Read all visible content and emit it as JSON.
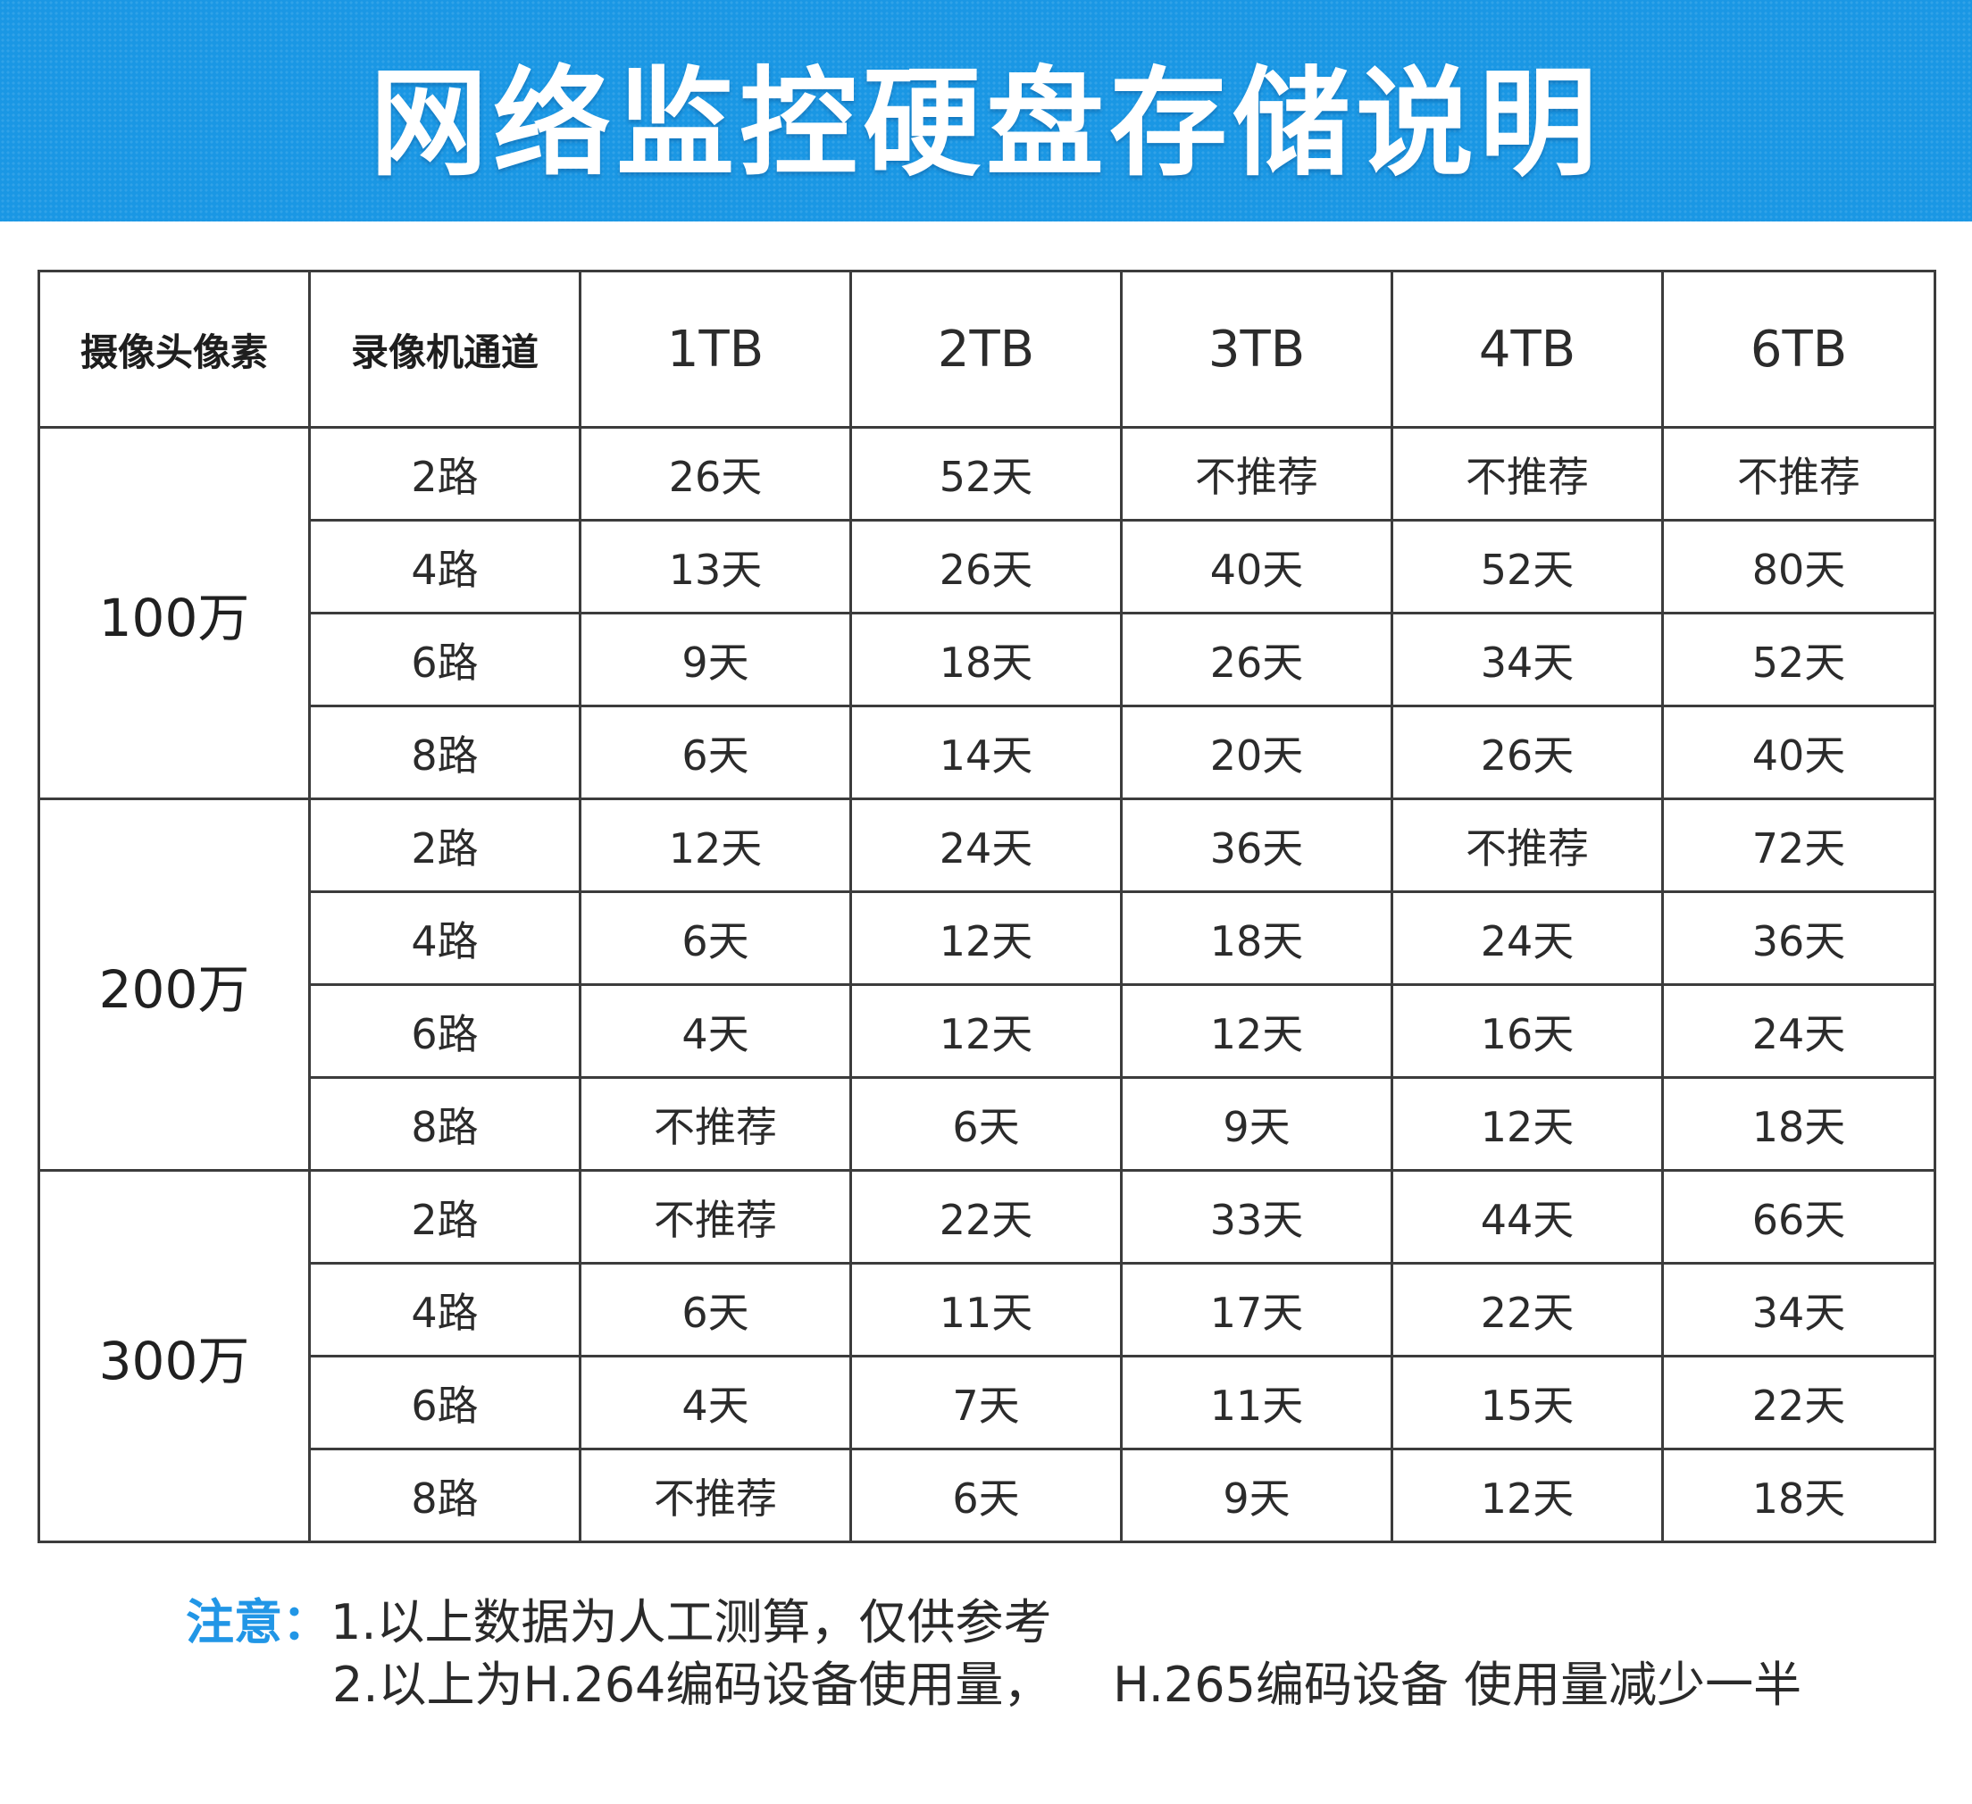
{
  "title": "网络监控硬盘存储说明",
  "colors": {
    "banner": "#1a97e4",
    "note_label": "#2196e6"
  },
  "table": {
    "headers": [
      "摄像头像素",
      "录像机通道",
      "1TB",
      "2TB",
      "3TB",
      "4TB",
      "6TB"
    ],
    "groups": [
      {
        "resolution": "100万",
        "rows": [
          {
            "channels": "2路",
            "values": [
              "26天",
              "52天",
              "不推荐",
              "不推荐",
              "不推荐"
            ]
          },
          {
            "channels": "4路",
            "values": [
              "13天",
              "26天",
              "40天",
              "52天",
              "80天"
            ]
          },
          {
            "channels": "6路",
            "values": [
              "9天",
              "18天",
              "26天",
              "34天",
              "52天"
            ]
          },
          {
            "channels": "8路",
            "values": [
              "6天",
              "14天",
              "20天",
              "26天",
              "40天"
            ]
          }
        ]
      },
      {
        "resolution": "200万",
        "rows": [
          {
            "channels": "2路",
            "values": [
              "12天",
              "24天",
              "36天",
              "不推荐",
              "72天"
            ]
          },
          {
            "channels": "4路",
            "values": [
              "6天",
              "12天",
              "18天",
              "24天",
              "36天"
            ]
          },
          {
            "channels": "6路",
            "values": [
              "4天",
              "12天",
              "12天",
              "16天",
              "24天"
            ]
          },
          {
            "channels": "8路",
            "values": [
              "不推荐",
              "6天",
              "9天",
              "12天",
              "18天"
            ]
          }
        ]
      },
      {
        "resolution": "300万",
        "rows": [
          {
            "channels": "2路",
            "values": [
              "不推荐",
              "22天",
              "33天",
              "44天",
              "66天"
            ]
          },
          {
            "channels": "4路",
            "values": [
              "6天",
              "11天",
              "17天",
              "22天",
              "34天"
            ]
          },
          {
            "channels": "6路",
            "values": [
              "4天",
              "7天",
              "11天",
              "15天",
              "22天"
            ]
          },
          {
            "channels": "8路",
            "values": [
              "不推荐",
              "6天",
              "9天",
              "12天",
              "18天"
            ]
          }
        ]
      }
    ]
  },
  "notes": {
    "label": "注意：",
    "line1": "1.以上数据为人工测算，仅供参考",
    "line2": "2.以上为H.264编码设备使用量，    H.265编码设备 使用量减少一半"
  }
}
